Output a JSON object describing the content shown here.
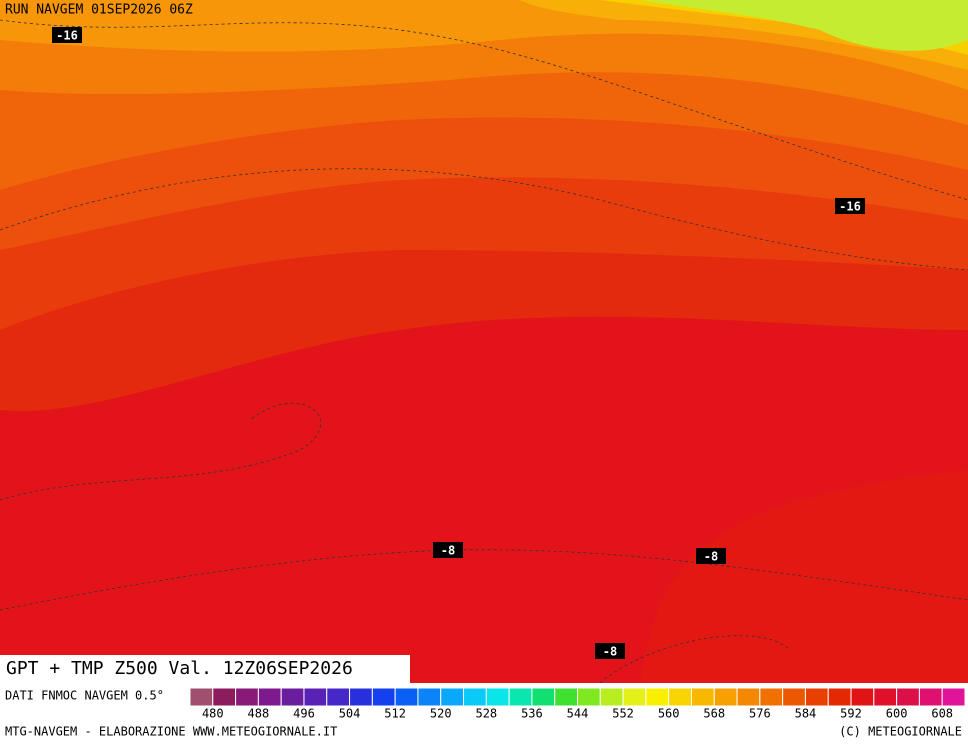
{
  "header": {
    "run": "RUN NAVGEM 01SEP2026 06Z"
  },
  "contour_labels": [
    "-16",
    "-16",
    "-8",
    "-8",
    "-8"
  ],
  "title": "GPT + TMP Z500 Val. 12Z06SEP2026",
  "colorbar": {
    "caption": "DATI FNMOC NAVGEM 0.5°",
    "range": [
      476,
      612
    ],
    "colors": [
      "#a0506e",
      "#8c1c5c",
      "#8a1a78",
      "#7e1a8e",
      "#6a1e9e",
      "#5a22b4",
      "#4628c8",
      "#2830dc",
      "#1440f0",
      "#0a60f4",
      "#0a84f8",
      "#0aa8fa",
      "#0acaf8",
      "#0ae6e8",
      "#0ae6b0",
      "#10e070",
      "#40e030",
      "#80e820",
      "#b8ee20",
      "#e4f018",
      "#f8f000",
      "#f8d400",
      "#f8b800",
      "#f8a000",
      "#f48800",
      "#f07000",
      "#ec5800",
      "#e84000",
      "#e42800",
      "#e01414",
      "#e0102c",
      "#dc1048",
      "#e01070",
      "#e01498"
    ],
    "ticks": [
      480,
      488,
      496,
      504,
      512,
      520,
      528,
      536,
      544,
      552,
      560,
      568,
      576,
      584,
      592,
      600,
      608
    ]
  },
  "footer": {
    "left": "MTG-NAVGEM - ELABORAZIONE WWW.METEOGIORNALE.IT",
    "right": "(C) METEOGIORNALE"
  }
}
